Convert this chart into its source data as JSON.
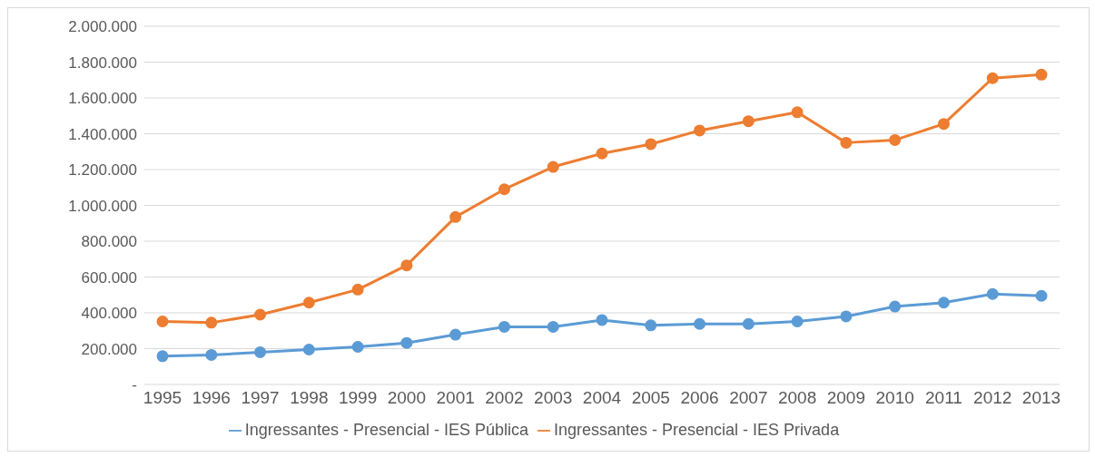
{
  "chart_data": {
    "type": "line",
    "categories": [
      "1995",
      "1996",
      "1997",
      "1998",
      "1999",
      "2000",
      "2001",
      "2002",
      "2003",
      "2004",
      "2005",
      "2006",
      "2007",
      "2008",
      "2009",
      "2010",
      "2011",
      "2012",
      "2013"
    ],
    "series": [
      {
        "name": "Ingressantes - Presencial - IES Pública",
        "color": "#5b9bd5",
        "values": [
          158000,
          165000,
          180000,
          195000,
          210000,
          232000,
          278000,
          322000,
          322000,
          360000,
          330000,
          338000,
          338000,
          352000,
          380000,
          435000,
          457000,
          505000,
          495000
        ]
      },
      {
        "name": "Ingressantes - Presencial - IES Privada",
        "color": "#ed7d31",
        "values": [
          352000,
          345000,
          390000,
          457000,
          530000,
          665000,
          935000,
          1090000,
          1215000,
          1290000,
          1342000,
          1418000,
          1470000,
          1520000,
          1350000,
          1365000,
          1455000,
          1710000,
          1730000
        ]
      }
    ],
    "ylim": [
      0,
      2000000
    ],
    "yticks": [
      {
        "value": 0,
        "label": "-"
      },
      {
        "value": 200000,
        "label": "200.000"
      },
      {
        "value": 400000,
        "label": "400.000"
      },
      {
        "value": 600000,
        "label": "600.000"
      },
      {
        "value": 800000,
        "label": "800.000"
      },
      {
        "value": 1000000,
        "label": "1.000.000"
      },
      {
        "value": 1200000,
        "label": "1.200.000"
      },
      {
        "value": 1400000,
        "label": "1.400.000"
      },
      {
        "value": 1600000,
        "label": "1.600.000"
      },
      {
        "value": 1800000,
        "label": "1.800.000"
      },
      {
        "value": 2000000,
        "label": "2.000.000"
      }
    ],
    "grid": "y",
    "legend": "bottom",
    "marker": "circle",
    "line_style": "solid"
  }
}
